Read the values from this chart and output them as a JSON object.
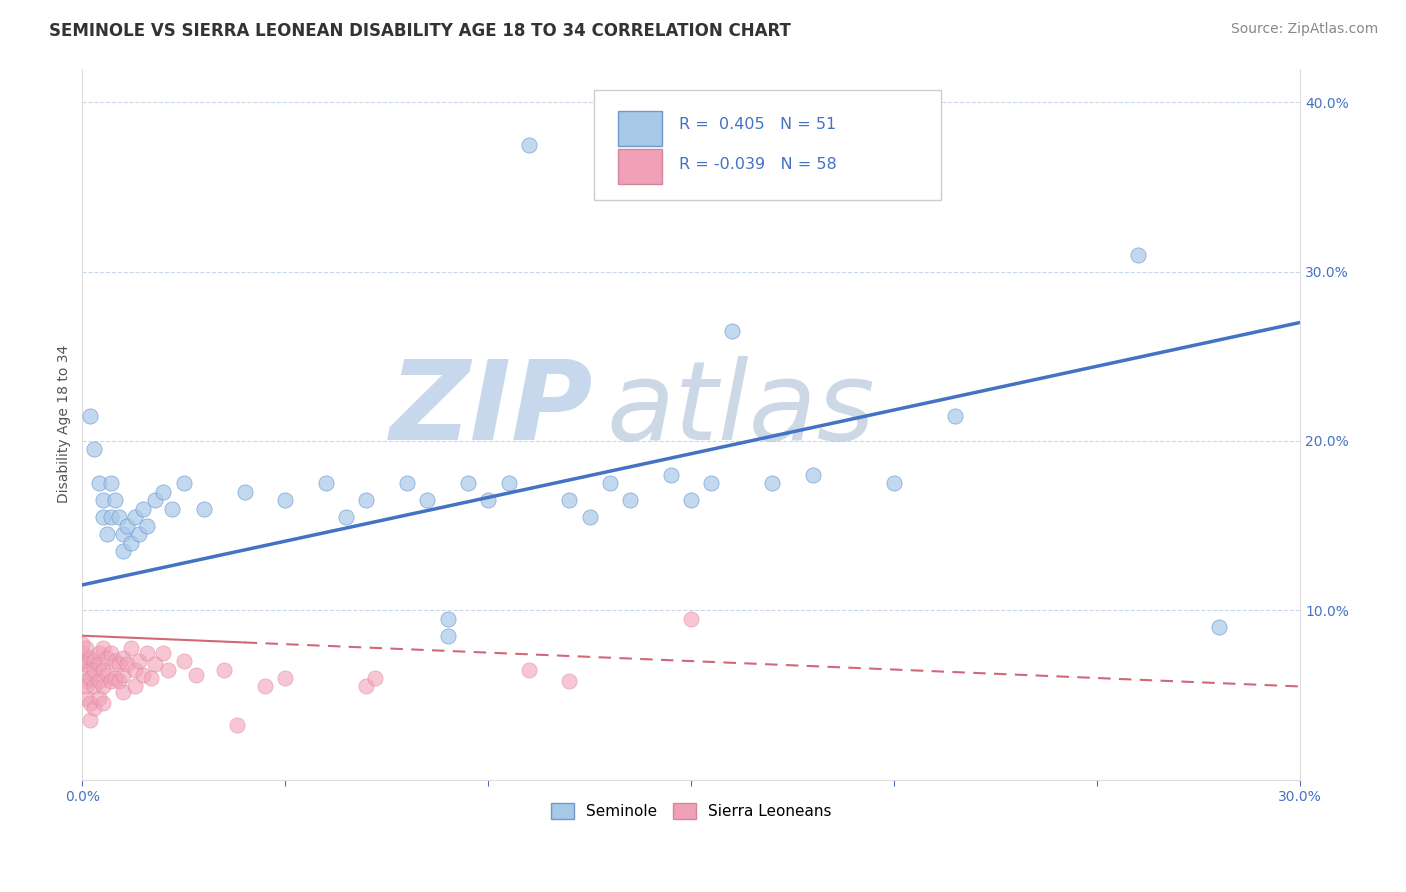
{
  "title": "SEMINOLE VS SIERRA LEONEAN DISABILITY AGE 18 TO 34 CORRELATION CHART",
  "source": "Source: ZipAtlas.com",
  "ylabel": "Disability Age 18 to 34",
  "xlim": [
    0.0,
    0.3
  ],
  "ylim": [
    0.0,
    0.42
  ],
  "xticks": [
    0.0,
    0.05,
    0.1,
    0.15,
    0.2,
    0.25,
    0.3
  ],
  "yticks": [
    0.0,
    0.1,
    0.2,
    0.3,
    0.4
  ],
  "xticklabels_left": [
    "0.0%",
    "",
    "",
    "",
    "",
    "",
    ""
  ],
  "xticklabels_right": [
    "",
    "",
    "",
    "",
    "",
    "",
    "30.0%"
  ],
  "yticklabels_right": [
    "",
    "10.0%",
    "20.0%",
    "30.0%",
    "40.0%"
  ],
  "seminole_R": 0.405,
  "seminole_N": 51,
  "sierra_R": -0.039,
  "sierra_N": 58,
  "seminole_color": "#a8c8e8",
  "sierra_color": "#f0a0b8",
  "seminole_line_color": "#4472C4",
  "sierra_line_color": "#d06878",
  "watermark_zip": "ZIP",
  "watermark_atlas": "atlas",
  "watermark_color": "#c8d8ec",
  "legend_seminole_label": "Seminole",
  "legend_sierra_label": "Sierra Leoneans",
  "background_color": "#ffffff",
  "grid_color": "#c8d8e8",
  "title_fontsize": 12,
  "axis_label_fontsize": 10,
  "tick_fontsize": 10,
  "source_fontsize": 10,
  "sem_line_y0": 0.115,
  "sem_line_y1": 0.27,
  "sie_line_y0": 0.085,
  "sie_line_y1": 0.055
}
